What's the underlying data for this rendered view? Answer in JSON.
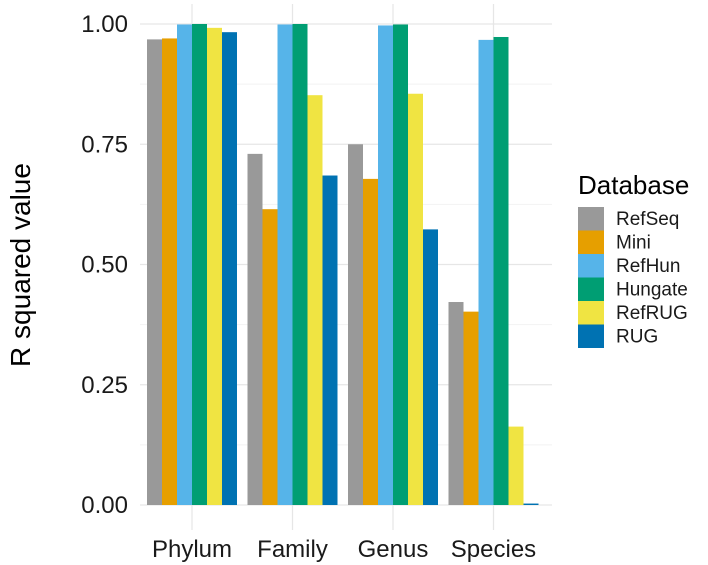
{
  "chart_data": {
    "type": "bar",
    "title": "",
    "xlabel": "",
    "ylabel": "R squared value",
    "ylim": [
      0,
      1
    ],
    "yticks": [
      0.0,
      0.25,
      0.5,
      0.75,
      1.0
    ],
    "ytick_labels": [
      "0.00",
      "0.25",
      "0.50",
      "0.75",
      "1.00"
    ],
    "categories": [
      "Phylum",
      "Family",
      "Genus",
      "Species"
    ],
    "legend_title": "Database",
    "legend_position": "right",
    "grid": true,
    "series": [
      {
        "name": "RefSeq",
        "color": "#999999",
        "values": [
          0.968,
          0.73,
          0.75,
          0.422
        ]
      },
      {
        "name": "Mini",
        "color": "#E69F00",
        "values": [
          0.97,
          0.615,
          0.678,
          0.402
        ]
      },
      {
        "name": "RefHun",
        "color": "#56B4E9",
        "values": [
          0.999,
          0.999,
          0.997,
          0.967
        ]
      },
      {
        "name": "Hungate",
        "color": "#009E73",
        "values": [
          1.0,
          1.0,
          0.999,
          0.973
        ]
      },
      {
        "name": "RefRUG",
        "color": "#F0E442",
        "values": [
          0.992,
          0.852,
          0.855,
          0.163
        ]
      },
      {
        "name": "RUG",
        "color": "#0072B2",
        "values": [
          0.983,
          0.685,
          0.573,
          0.003
        ]
      }
    ]
  }
}
